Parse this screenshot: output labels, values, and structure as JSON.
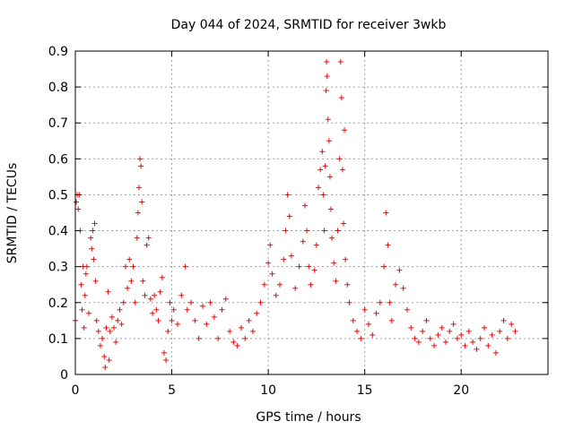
{
  "chart_data": {
    "type": "scatter",
    "title": "Day 044 of 2024, SRMTID for receiver 3wkb",
    "xlabel": "GPS time / hours",
    "ylabel": "SRMTID / TECUs",
    "xlim": [
      0,
      24.5
    ],
    "ylim": [
      0,
      0.9
    ],
    "xticks": [
      0,
      5,
      10,
      15,
      20
    ],
    "yticks": [
      0,
      0.1,
      0.2,
      0.3,
      0.4,
      0.5,
      0.6,
      0.7,
      0.8,
      0.9
    ],
    "grid": true,
    "marker": "+",
    "color": "#ff0000",
    "series": [
      {
        "name": "SRMTID",
        "points": [
          [
            0.0,
            0.15
          ],
          [
            0.05,
            0.48
          ],
          [
            0.1,
            0.5
          ],
          [
            0.15,
            0.46
          ],
          [
            0.2,
            0.5
          ],
          [
            0.25,
            0.4
          ],
          [
            0.3,
            0.25
          ],
          [
            0.35,
            0.18
          ],
          [
            0.4,
            0.3
          ],
          [
            0.45,
            0.13
          ],
          [
            0.5,
            0.22
          ],
          [
            0.55,
            0.28
          ],
          [
            0.6,
            0.3
          ],
          [
            0.7,
            0.17
          ],
          [
            0.8,
            0.38
          ],
          [
            0.85,
            0.35
          ],
          [
            0.9,
            0.4
          ],
          [
            0.95,
            0.32
          ],
          [
            1.0,
            0.42
          ],
          [
            1.05,
            0.26
          ],
          [
            1.1,
            0.15
          ],
          [
            1.2,
            0.12
          ],
          [
            1.3,
            0.08
          ],
          [
            1.4,
            0.1
          ],
          [
            1.5,
            0.05
          ],
          [
            1.55,
            0.02
          ],
          [
            1.6,
            0.13
          ],
          [
            1.7,
            0.23
          ],
          [
            1.75,
            0.04
          ],
          [
            1.8,
            0.12
          ],
          [
            1.9,
            0.16
          ],
          [
            2.0,
            0.13
          ],
          [
            2.1,
            0.09
          ],
          [
            2.2,
            0.15
          ],
          [
            2.3,
            0.18
          ],
          [
            2.4,
            0.14
          ],
          [
            2.5,
            0.2
          ],
          [
            2.6,
            0.3
          ],
          [
            2.7,
            0.24
          ],
          [
            2.8,
            0.32
          ],
          [
            2.9,
            0.26
          ],
          [
            3.0,
            0.3
          ],
          [
            3.1,
            0.2
          ],
          [
            3.2,
            0.38
          ],
          [
            3.25,
            0.45
          ],
          [
            3.3,
            0.52
          ],
          [
            3.35,
            0.6
          ],
          [
            3.4,
            0.58
          ],
          [
            3.45,
            0.48
          ],
          [
            3.5,
            0.26
          ],
          [
            3.6,
            0.22
          ],
          [
            3.7,
            0.36
          ],
          [
            3.8,
            0.38
          ],
          [
            3.9,
            0.21
          ],
          [
            4.0,
            0.17
          ],
          [
            4.1,
            0.22
          ],
          [
            4.2,
            0.18
          ],
          [
            4.3,
            0.15
          ],
          [
            4.4,
            0.23
          ],
          [
            4.5,
            0.27
          ],
          [
            4.6,
            0.06
          ],
          [
            4.7,
            0.04
          ],
          [
            4.8,
            0.12
          ],
          [
            4.9,
            0.2
          ],
          [
            5.0,
            0.15
          ],
          [
            5.1,
            0.18
          ],
          [
            5.3,
            0.14
          ],
          [
            5.5,
            0.22
          ],
          [
            5.7,
            0.3
          ],
          [
            5.8,
            0.18
          ],
          [
            6.0,
            0.2
          ],
          [
            6.2,
            0.15
          ],
          [
            6.4,
            0.1
          ],
          [
            6.6,
            0.19
          ],
          [
            6.8,
            0.14
          ],
          [
            7.0,
            0.2
          ],
          [
            7.2,
            0.16
          ],
          [
            7.4,
            0.1
          ],
          [
            7.6,
            0.18
          ],
          [
            7.8,
            0.21
          ],
          [
            8.0,
            0.12
          ],
          [
            8.2,
            0.09
          ],
          [
            8.4,
            0.08
          ],
          [
            8.6,
            0.13
          ],
          [
            8.8,
            0.1
          ],
          [
            9.0,
            0.15
          ],
          [
            9.2,
            0.12
          ],
          [
            9.4,
            0.17
          ],
          [
            9.6,
            0.2
          ],
          [
            9.8,
            0.25
          ],
          [
            10.0,
            0.31
          ],
          [
            10.1,
            0.36
          ],
          [
            10.2,
            0.28
          ],
          [
            10.4,
            0.22
          ],
          [
            10.6,
            0.25
          ],
          [
            10.8,
            0.32
          ],
          [
            10.9,
            0.4
          ],
          [
            11.0,
            0.5
          ],
          [
            11.1,
            0.44
          ],
          [
            11.2,
            0.33
          ],
          [
            11.4,
            0.24
          ],
          [
            11.6,
            0.3
          ],
          [
            11.8,
            0.37
          ],
          [
            11.9,
            0.47
          ],
          [
            12.0,
            0.4
          ],
          [
            12.1,
            0.3
          ],
          [
            12.2,
            0.25
          ],
          [
            12.4,
            0.29
          ],
          [
            12.5,
            0.36
          ],
          [
            12.6,
            0.52
          ],
          [
            12.7,
            0.57
          ],
          [
            12.8,
            0.62
          ],
          [
            12.85,
            0.5
          ],
          [
            12.9,
            0.4
          ],
          [
            12.95,
            0.58
          ],
          [
            13.0,
            0.79
          ],
          [
            13.02,
            0.87
          ],
          [
            13.05,
            0.83
          ],
          [
            13.1,
            0.71
          ],
          [
            13.15,
            0.65
          ],
          [
            13.2,
            0.55
          ],
          [
            13.25,
            0.46
          ],
          [
            13.3,
            0.38
          ],
          [
            13.4,
            0.31
          ],
          [
            13.5,
            0.26
          ],
          [
            13.6,
            0.4
          ],
          [
            13.7,
            0.6
          ],
          [
            13.75,
            0.87
          ],
          [
            13.8,
            0.77
          ],
          [
            13.85,
            0.57
          ],
          [
            13.9,
            0.42
          ],
          [
            13.95,
            0.68
          ],
          [
            14.0,
            0.32
          ],
          [
            14.1,
            0.25
          ],
          [
            14.2,
            0.2
          ],
          [
            14.4,
            0.15
          ],
          [
            14.6,
            0.12
          ],
          [
            14.8,
            0.1
          ],
          [
            15.0,
            0.18
          ],
          [
            15.2,
            0.14
          ],
          [
            15.4,
            0.11
          ],
          [
            15.6,
            0.17
          ],
          [
            15.8,
            0.2
          ],
          [
            16.0,
            0.3
          ],
          [
            16.1,
            0.45
          ],
          [
            16.2,
            0.36
          ],
          [
            16.3,
            0.2
          ],
          [
            16.4,
            0.15
          ],
          [
            16.6,
            0.25
          ],
          [
            16.8,
            0.29
          ],
          [
            17.0,
            0.24
          ],
          [
            17.2,
            0.18
          ],
          [
            17.4,
            0.13
          ],
          [
            17.6,
            0.1
          ],
          [
            17.8,
            0.09
          ],
          [
            18.0,
            0.12
          ],
          [
            18.2,
            0.15
          ],
          [
            18.4,
            0.1
          ],
          [
            18.6,
            0.08
          ],
          [
            18.8,
            0.11
          ],
          [
            19.0,
            0.13
          ],
          [
            19.2,
            0.09
          ],
          [
            19.4,
            0.12
          ],
          [
            19.6,
            0.14
          ],
          [
            19.8,
            0.1
          ],
          [
            20.0,
            0.11
          ],
          [
            20.2,
            0.08
          ],
          [
            20.4,
            0.12
          ],
          [
            20.6,
            0.09
          ],
          [
            20.8,
            0.07
          ],
          [
            21.0,
            0.1
          ],
          [
            21.2,
            0.13
          ],
          [
            21.4,
            0.08
          ],
          [
            21.6,
            0.11
          ],
          [
            21.8,
            0.06
          ],
          [
            22.0,
            0.12
          ],
          [
            22.2,
            0.15
          ],
          [
            22.4,
            0.1
          ],
          [
            22.6,
            0.14
          ],
          [
            22.8,
            0.12
          ]
        ]
      }
    ]
  }
}
